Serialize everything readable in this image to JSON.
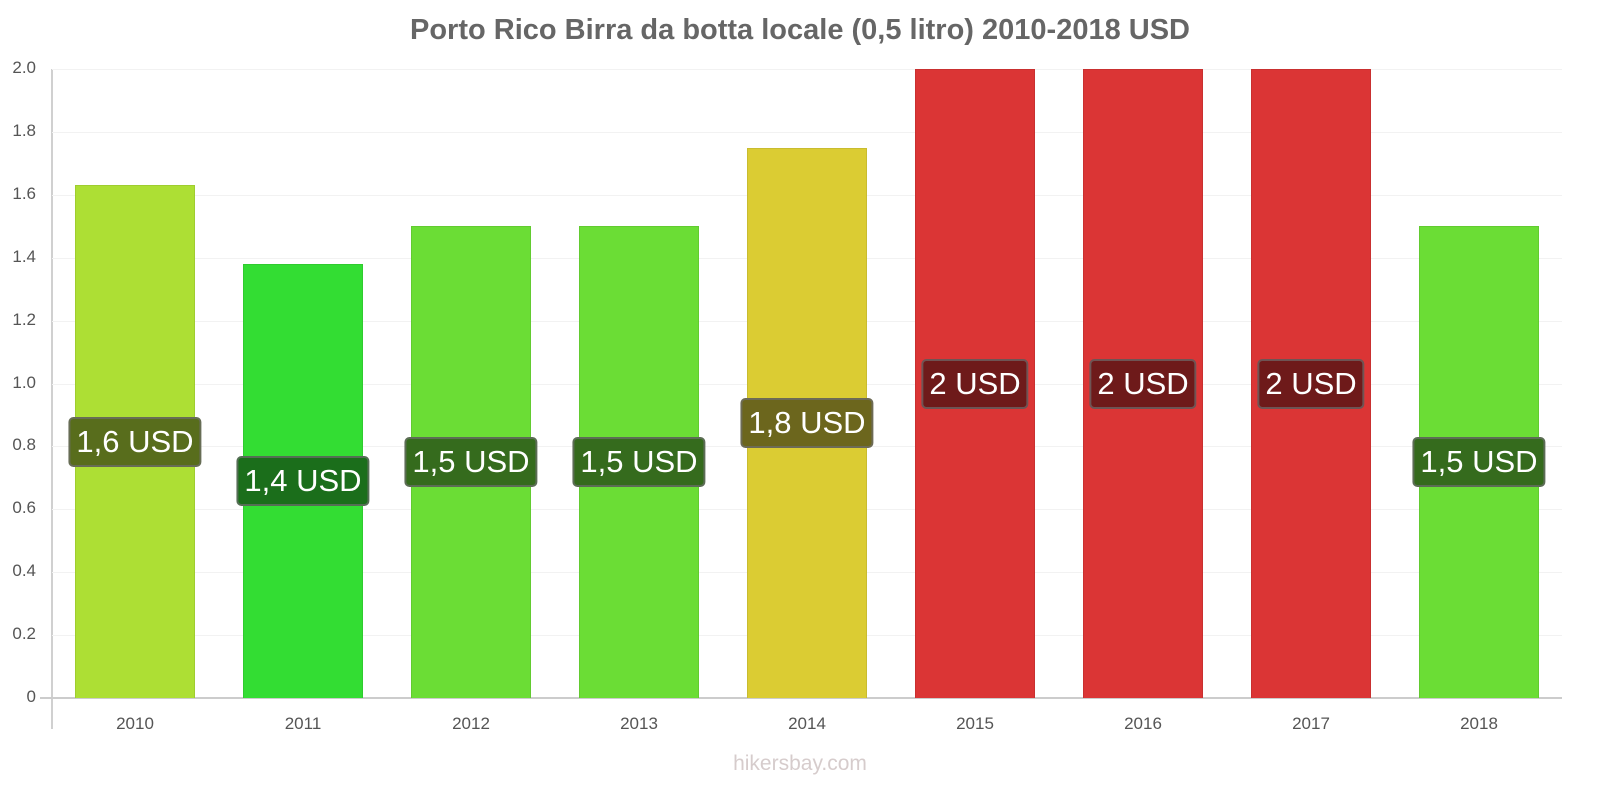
{
  "header": {
    "title": "Porto Rico Birra da botta locale (0,5 litro) 2010-2018 USD"
  },
  "footer": {
    "source": "hikersbay.com"
  },
  "axes": {
    "y_ticks": [
      "0",
      "0.2",
      "0.4",
      "0.6",
      "0.8",
      "1.0",
      "1.2",
      "1.4",
      "1.6",
      "1.8",
      "2.0"
    ]
  },
  "bars": [
    {
      "year": "2010",
      "value": 1.63,
      "label": "1,6 USD",
      "color": "#addf34",
      "label_bg": "#586d1c"
    },
    {
      "year": "2011",
      "value": 1.38,
      "label": "1,4 USD",
      "color": "#33dd33",
      "label_bg": "#1b6e1b"
    },
    {
      "year": "2012",
      "value": 1.5,
      "label": "1,5 USD",
      "color": "#6bdd35",
      "label_bg": "#356b1d"
    },
    {
      "year": "2013",
      "value": 1.5,
      "label": "1,5 USD",
      "color": "#6bdd35",
      "label_bg": "#356b1d"
    },
    {
      "year": "2014",
      "value": 1.75,
      "label": "1,8 USD",
      "color": "#dbcc33",
      "label_bg": "#6c661d"
    },
    {
      "year": "2015",
      "value": 2.0,
      "label": "2 USD",
      "color": "#db3535",
      "label_bg": "#6e1a1a"
    },
    {
      "year": "2016",
      "value": 2.0,
      "label": "2 USD",
      "color": "#db3535",
      "label_bg": "#6e1a1a"
    },
    {
      "year": "2017",
      "value": 2.0,
      "label": "2 USD",
      "color": "#db3535",
      "label_bg": "#6e1a1a"
    },
    {
      "year": "2018",
      "value": 1.5,
      "label": "1,5 USD",
      "color": "#6bdd35",
      "label_bg": "#356b1d"
    }
  ],
  "chart_data": {
    "type": "bar",
    "title": "Porto Rico Birra da botta locale (0,5 litro) 2010-2018 USD",
    "xlabel": "",
    "ylabel": "",
    "categories": [
      "2010",
      "2011",
      "2012",
      "2013",
      "2014",
      "2015",
      "2016",
      "2017",
      "2018"
    ],
    "values": [
      1.63,
      1.38,
      1.5,
      1.5,
      1.75,
      2.0,
      2.0,
      2.0,
      1.5
    ],
    "data_labels": [
      "1,6 USD",
      "1,4 USD",
      "1,5 USD",
      "1,5 USD",
      "1,8 USD",
      "2 USD",
      "2 USD",
      "2 USD",
      "1,5 USD"
    ],
    "ylim": [
      0,
      2.0
    ],
    "y_ticks": [
      0,
      0.2,
      0.4,
      0.6,
      0.8,
      1.0,
      1.2,
      1.4,
      1.6,
      1.8,
      2.0
    ],
    "grid": true,
    "legend": null,
    "colors": [
      "#addf34",
      "#33dd33",
      "#6bdd35",
      "#6bdd35",
      "#dbcc33",
      "#db3535",
      "#db3535",
      "#db3535",
      "#6bdd35"
    ],
    "source": "hikersbay.com"
  }
}
